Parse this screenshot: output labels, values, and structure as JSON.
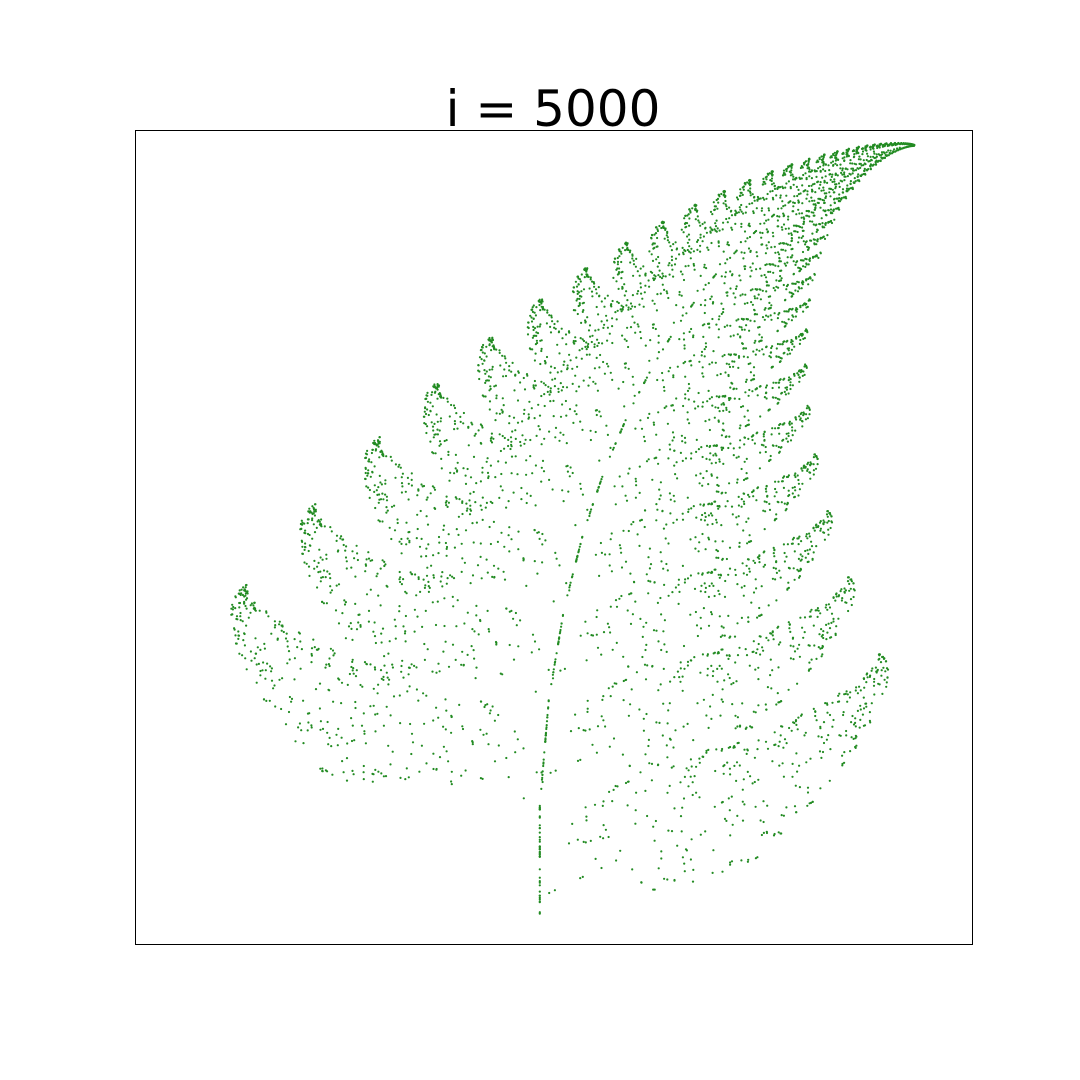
{
  "chart_data": {
    "type": "scatter",
    "title": "i = 5000",
    "xlabel": "",
    "ylabel": "",
    "xlim": [
      -2.85,
      3.05
    ],
    "ylim": [
      -0.15,
      10.15
    ],
    "grid": false,
    "axes_ticks": false,
    "series": [
      {
        "color": "#228b22",
        "marker": "dot",
        "generator": "barnsley-fern",
        "num_points": 5000,
        "seed": 7,
        "ifs": [
          {
            "a": 0.0,
            "b": 0.0,
            "c": 0.0,
            "d": 0.16,
            "e": 0.0,
            "f": 0.0,
            "p": 0.01
          },
          {
            "a": 0.85,
            "b": 0.04,
            "c": -0.04,
            "d": 0.85,
            "e": 0.0,
            "f": 1.6,
            "p": 0.85
          },
          {
            "a": 0.2,
            "b": -0.26,
            "c": 0.23,
            "d": 0.22,
            "e": 0.0,
            "f": 1.6,
            "p": 0.07
          },
          {
            "a": -0.15,
            "b": 0.28,
            "c": 0.26,
            "d": 0.24,
            "e": 0.0,
            "f": 0.44,
            "p": 0.07
          }
        ]
      }
    ]
  }
}
